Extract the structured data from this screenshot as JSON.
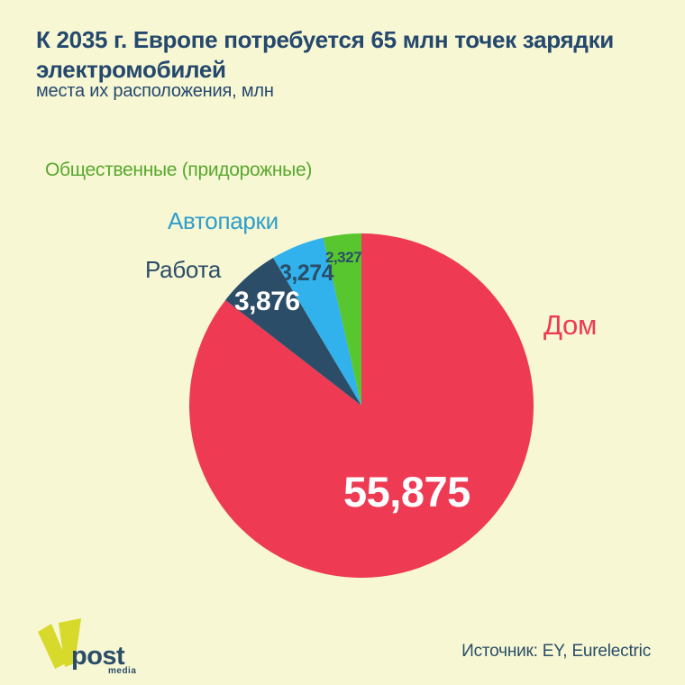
{
  "page": {
    "background": "#f7f7d4",
    "text_navy": "#2b4d68",
    "title_color": "#25486d"
  },
  "chart_data": {
    "type": "pie",
    "title": "К 2035 г. Европе потребуется 65 млн точек зарядки электромобилей",
    "subtitle": "места их расположения, млн",
    "unit": "млн",
    "start_angle": "top",
    "direction": "clockwise",
    "total": 65.352,
    "slices": [
      {
        "id": "home",
        "label": "Дом",
        "value": 55.875,
        "value_display": "55,875",
        "color": "#ee3a53",
        "label_color": "#ee3a53",
        "value_color": "#ffffff"
      },
      {
        "id": "work",
        "label": "Работа",
        "value": 3.876,
        "value_display": "3,876",
        "color": "#2b4d68",
        "label_color": "#2b4d68",
        "value_color": "#ffffff"
      },
      {
        "id": "fleets",
        "label": "Автопарки",
        "value": 3.274,
        "value_display": "3,274",
        "color": "#31b2ec",
        "label_color": "#2e9ecb",
        "value_color": "#2b4d68"
      },
      {
        "id": "public",
        "label": "Общественные (придорожные)",
        "value": 2.327,
        "value_display": "2,327",
        "color": "#58c62e",
        "label_color": "#58a82d",
        "value_color": "#2b4d68"
      }
    ]
  },
  "footer": {
    "source": "Источник: EY, Eurelectric",
    "logo": {
      "text": "post",
      "subtext": "media",
      "mark_color": "#d7d92b",
      "text_color": "#2b4d68"
    }
  }
}
